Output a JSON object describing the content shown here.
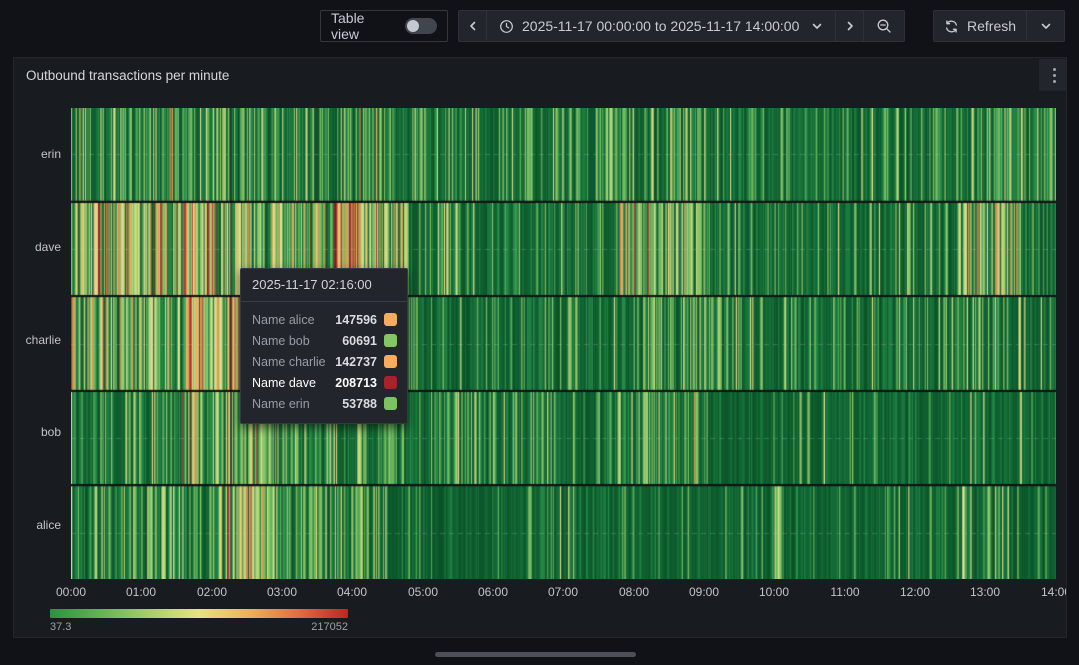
{
  "toolbar": {
    "table_view_label": "Table view",
    "time_range_label": "2025-11-17 00:00:00 to 2025-11-17 14:00:00",
    "refresh_label": "Refresh"
  },
  "panel": {
    "title": "Outbound transactions per minute"
  },
  "tooltip": {
    "timestamp": "2025-11-17 02:16:00",
    "rows": [
      {
        "label": "Name alice",
        "value": "147596",
        "color": "#f6ab5e",
        "highlight": false
      },
      {
        "label": "Name bob",
        "value": "60691",
        "color": "#84c566",
        "highlight": false
      },
      {
        "label": "Name charlie",
        "value": "142737",
        "color": "#f6ab5e",
        "highlight": false
      },
      {
        "label": "Name dave",
        "value": "208713",
        "color": "#a8222c",
        "highlight": true
      },
      {
        "label": "Name erin",
        "value": "53788",
        "color": "#7cc461",
        "highlight": false
      }
    ]
  },
  "chart_data": {
    "type": "heatmap",
    "title": "Outbound transactions per minute",
    "rows": [
      "erin",
      "dave",
      "charlie",
      "bob",
      "alice"
    ],
    "x_ticks": [
      "00:00",
      "01:00",
      "02:00",
      "03:00",
      "04:00",
      "05:00",
      "06:00",
      "07:00",
      "08:00",
      "09:00",
      "10:00",
      "11:00",
      "12:00",
      "13:00",
      "14:00"
    ],
    "x_range": [
      "2025-11-17 00:00:00",
      "2025-11-17 14:00:00"
    ],
    "minutes": 840,
    "color_scale": {
      "min": 37.3,
      "max": 217052,
      "min_label": "37.3",
      "max_label": "217052"
    },
    "crosshair_minute": 136,
    "hovered_values": {
      "alice": 147596,
      "bob": 60691,
      "charlie": 142737,
      "dave": 208713,
      "erin": 53788
    },
    "seed": 1371,
    "palettes": {
      "dark": [
        "#0d5a2c",
        "#106231",
        "#146a36",
        "#0f5e2f",
        "#17713a",
        "#0b5429"
      ],
      "mid": [
        "#1d7d40",
        "#248547",
        "#2b8f4b",
        "#1f8042"
      ],
      "light": [
        "#4ea558",
        "#66b35c",
        "#7fbf63",
        "#97ca6f",
        "#8cc468"
      ],
      "yellow": [
        "#b8d47e",
        "#cfdd88",
        "#e3e38f",
        "#dbd98a"
      ],
      "orange": [
        "#eab262",
        "#e29a55",
        "#d98a4e"
      ],
      "red": [
        "#bb2b2f",
        "#a81f28",
        "#c63b33"
      ]
    },
    "levels": {
      "quiet": [
        [
          "dark",
          0.8
        ],
        [
          "mid",
          0.14
        ],
        [
          "light",
          0.05
        ],
        [
          "yellow",
          0.01
        ]
      ],
      "calm": [
        [
          "dark",
          0.6
        ],
        [
          "mid",
          0.22
        ],
        [
          "light",
          0.14
        ],
        [
          "yellow",
          0.04
        ]
      ],
      "active": [
        [
          "dark",
          0.42
        ],
        [
          "mid",
          0.22
        ],
        [
          "light",
          0.26
        ],
        [
          "yellow",
          0.09
        ],
        [
          "orange",
          0.01
        ]
      ],
      "warm": [
        [
          "dark",
          0.22
        ],
        [
          "mid",
          0.14
        ],
        [
          "light",
          0.28
        ],
        [
          "yellow",
          0.24
        ],
        [
          "orange",
          0.09
        ],
        [
          "red",
          0.03
        ]
      ],
      "hot": [
        [
          "dark",
          0.14
        ],
        [
          "mid",
          0.1
        ],
        [
          "light",
          0.2
        ],
        [
          "yellow",
          0.26
        ],
        [
          "orange",
          0.19
        ],
        [
          "red",
          0.11
        ]
      ],
      "spike": [
        [
          "light",
          0.55
        ],
        [
          "yellow",
          0.45
        ]
      ]
    },
    "row_profiles": {
      "erin": [
        [
          0,
          275,
          "active"
        ],
        [
          275,
          450,
          "calm"
        ],
        [
          450,
          545,
          "active"
        ],
        [
          545,
          755,
          "calm"
        ],
        [
          755,
          840,
          "active"
        ]
      ],
      "dave": [
        [
          0,
          150,
          "hot"
        ],
        [
          150,
          218,
          "warm"
        ],
        [
          218,
          288,
          "hot"
        ],
        [
          288,
          465,
          "calm"
        ],
        [
          465,
          545,
          "warm"
        ],
        [
          545,
          745,
          "calm"
        ],
        [
          745,
          815,
          "warm"
        ],
        [
          815,
          840,
          "calm"
        ]
      ],
      "charlie": [
        [
          0,
          95,
          "warm"
        ],
        [
          95,
          165,
          "hot"
        ],
        [
          165,
          235,
          "warm"
        ],
        [
          235,
          300,
          "active"
        ],
        [
          300,
          480,
          "calm"
        ],
        [
          480,
          560,
          "active"
        ],
        [
          560,
          755,
          "calm"
        ],
        [
          755,
          800,
          "active"
        ],
        [
          800,
          840,
          "calm"
        ]
      ],
      "bob": [
        [
          0,
          95,
          "active"
        ],
        [
          95,
          175,
          "warm"
        ],
        [
          175,
          285,
          "active"
        ],
        [
          285,
          460,
          "calm"
        ],
        [
          460,
          550,
          "active"
        ],
        [
          550,
          840,
          "quiet"
        ]
      ],
      "alice": [
        [
          0,
          120,
          "active"
        ],
        [
          120,
          180,
          "warm"
        ],
        [
          180,
          270,
          "active"
        ],
        [
          270,
          600,
          "quiet"
        ],
        [
          600,
          606,
          "spike"
        ],
        [
          606,
          758,
          "quiet"
        ],
        [
          758,
          800,
          "active"
        ],
        [
          800,
          840,
          "quiet"
        ]
      ]
    }
  }
}
